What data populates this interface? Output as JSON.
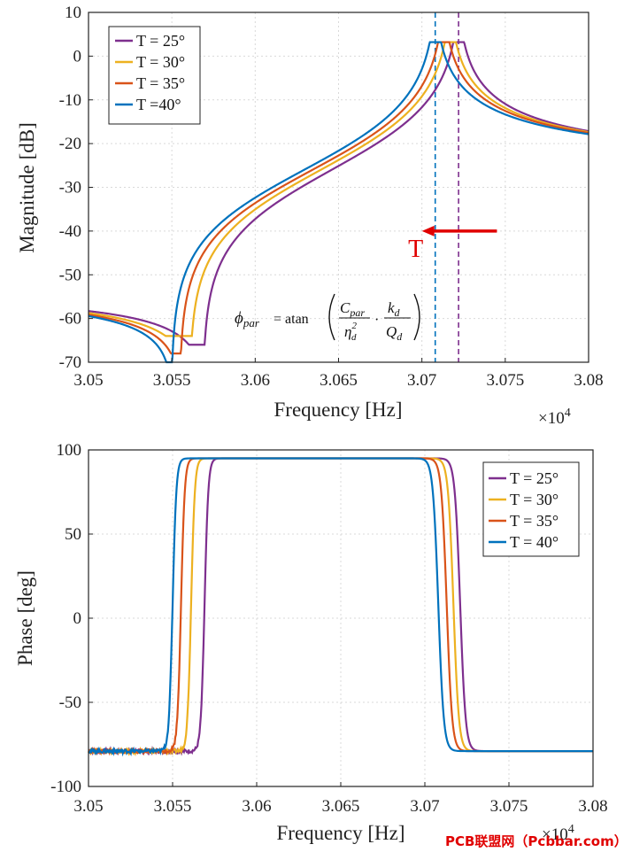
{
  "chart_data": [
    {
      "type": "line",
      "xlabel": "Frequency [Hz]",
      "ylabel": "Magnitude [dB]",
      "x_multiplier": "×10",
      "x_exponent": "4",
      "xlim": [
        3.05,
        3.08
      ],
      "ylim": [
        -70,
        10
      ],
      "xticks": [
        "3.05",
        "3.055",
        "3.06",
        "3.065",
        "3.07",
        "3.075",
        "3.08"
      ],
      "yticks": [
        "10",
        "0",
        "-10",
        "-20",
        "-30",
        "-40",
        "-50",
        "-60",
        "-70"
      ],
      "legend_position": "top-left",
      "series": [
        {
          "name": "T = 25°",
          "color": "#7e2f8e",
          "antires": 3.0569,
          "res": 3.0722,
          "min": -66,
          "peak": 3.2
        },
        {
          "name": "T = 30°",
          "color": "#edb120",
          "antires": 3.0561,
          "res": 3.0717,
          "min": -64,
          "peak": 3.2
        },
        {
          "name": "T = 35°",
          "color": "#d95319",
          "antires": 3.0555,
          "res": 3.0713,
          "min": -68,
          "peak": 3.2
        },
        {
          "name": "T =40°",
          "color": "#0072bd",
          "antires": 3.055,
          "res": 3.0708,
          "min": -70,
          "peak": 3.2
        }
      ],
      "vlines": [
        {
          "x": 3.0708,
          "color": "#0072bd"
        },
        {
          "x": 3.0722,
          "color": "#7e2f8e"
        }
      ],
      "arrow": {
        "label": "T",
        "from_x": 3.0745,
        "to_x": 3.07,
        "y": -40,
        "color": "#e00000"
      },
      "equation": {
        "lhs_symbol": "ϕ",
        "lhs_sub": "par",
        "equals_text": "= atan",
        "num1": "C",
        "num1_sub": "par",
        "den1": "η",
        "den1_sup": "2",
        "den1_sub": "d",
        "dot": "·",
        "num2": "k",
        "num2_sub": "d",
        "den2": "Q",
        "den2_sub": "d"
      }
    },
    {
      "type": "line",
      "xlabel": "Frequency [Hz]",
      "ylabel": "Phase [deg]",
      "x_multiplier": "×10",
      "x_exponent": "4",
      "xlim": [
        3.05,
        3.08
      ],
      "ylim": [
        -100,
        100
      ],
      "xticks": [
        "3.05",
        "3.055",
        "3.06",
        "3.065",
        "3.07",
        "3.075",
        "3.08"
      ],
      "yticks": [
        "100",
        "50",
        "0",
        "-50",
        "-100"
      ],
      "legend_position": "top-right",
      "series": [
        {
          "name": "T = 25°",
          "color": "#7e2f8e",
          "rise": 3.0569,
          "fall": 3.0721
        },
        {
          "name": "T = 30°",
          "color": "#edb120",
          "rise": 3.0561,
          "fall": 3.0717
        },
        {
          "name": "T = 35°",
          "color": "#d95319",
          "rise": 3.0555,
          "fall": 3.0713
        },
        {
          "name": "T = 40°",
          "color": "#0072bd",
          "rise": 3.055,
          "fall": 3.0708
        }
      ],
      "plateau": 95,
      "floor": -79
    }
  ],
  "watermark": "PCB联盟网（Pcbbar.com）"
}
